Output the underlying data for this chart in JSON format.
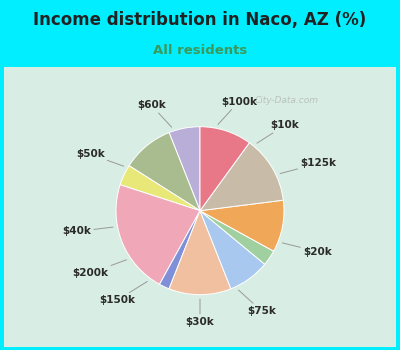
{
  "title": "Income distribution in Naco, AZ (%)",
  "subtitle": "All residents",
  "title_color": "#222222",
  "subtitle_color": "#3a9a5c",
  "background_color": "#00eeff",
  "chart_bg_color": "#d8ede4",
  "watermark": "City-Data.com",
  "labels": [
    "$100k",
    "$10k",
    "$125k",
    "$20k",
    "$75k",
    "$30k",
    "$150k",
    "$200k",
    "$40k",
    "$50k",
    "$60k"
  ],
  "sizes": [
    6,
    10,
    4,
    22,
    2,
    12,
    8,
    3,
    10,
    13,
    10
  ],
  "colors": [
    "#b8aed8",
    "#a8bc90",
    "#e8e878",
    "#f0a8b8",
    "#8090d8",
    "#f0c0a0",
    "#a8c8f0",
    "#a0d0a0",
    "#f0a858",
    "#c8bca8",
    "#e87888"
  ],
  "label_fontsize": 7.5,
  "title_fontsize": 12,
  "subtitle_fontsize": 9.5,
  "startangle": 90
}
